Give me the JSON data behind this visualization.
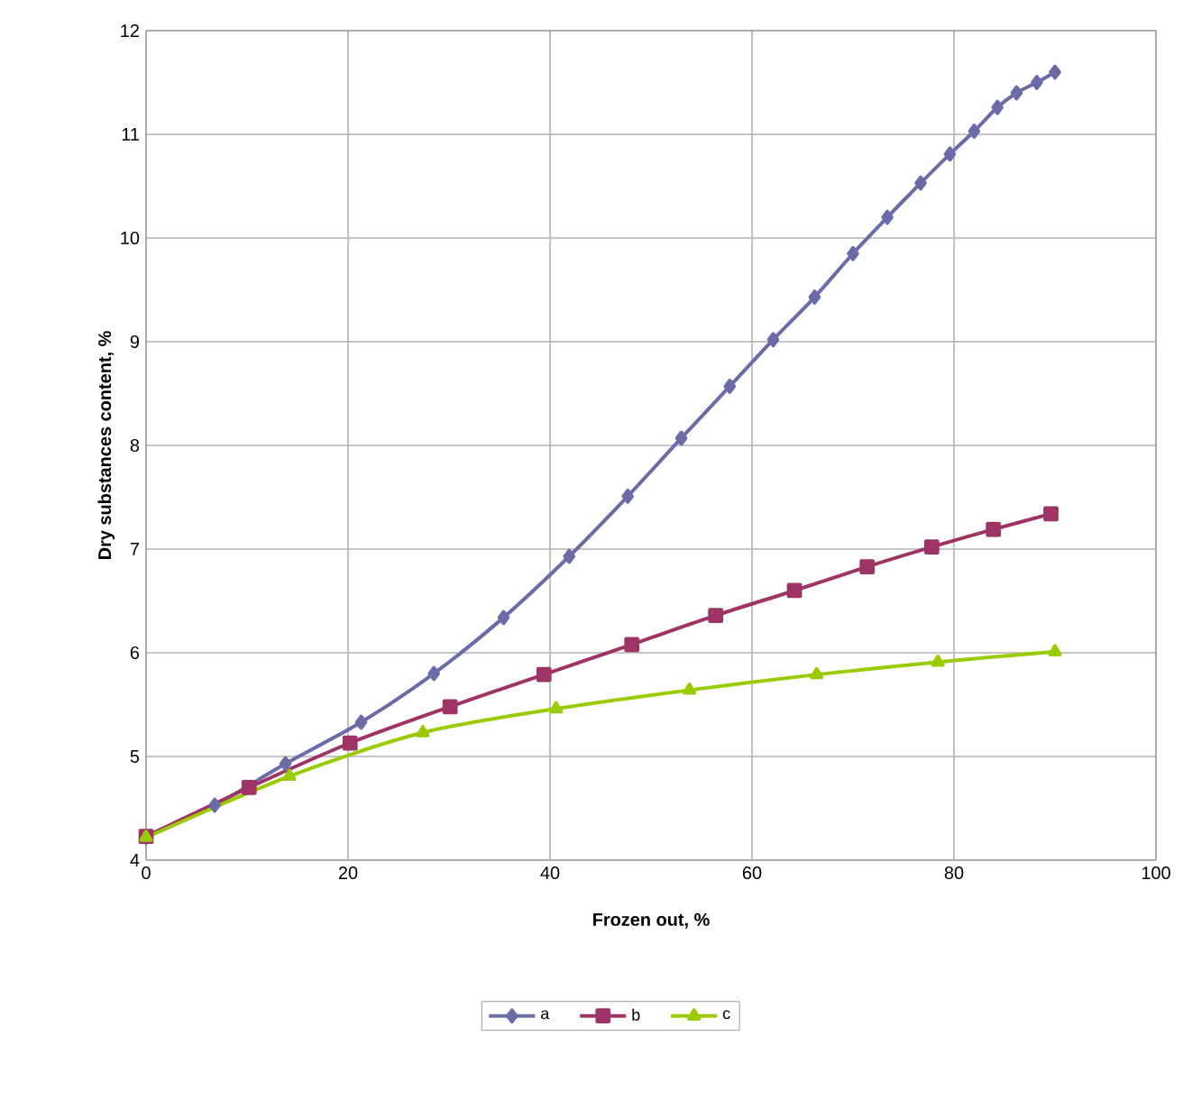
{
  "chart_data": {
    "type": "line",
    "xlabel": "Frozen out, %",
    "ylabel": "Dry substances content, %",
    "xlim": [
      0,
      100
    ],
    "ylim": [
      4,
      12
    ],
    "xticks": [
      0,
      20,
      40,
      60,
      80,
      100
    ],
    "yticks": [
      4,
      5,
      6,
      7,
      8,
      9,
      10,
      11,
      12
    ],
    "grid": true,
    "legend": "bottom",
    "series": [
      {
        "name": "a",
        "color": "#6b6ba8",
        "marker": "diamond",
        "x": [
          0,
          6.8,
          13.8,
          21.3,
          28.5,
          35.4,
          41.9,
          47.7,
          53,
          57.8,
          62.1,
          66.2,
          70,
          73.4,
          76.7,
          79.6,
          82,
          84.3,
          86.2,
          88.2,
          90
        ],
        "values": [
          4.22,
          4.53,
          4.93,
          5.33,
          5.8,
          6.34,
          6.93,
          7.51,
          8.07,
          8.57,
          9.02,
          9.43,
          9.85,
          10.2,
          10.53,
          10.81,
          11.03,
          11.26,
          11.4,
          11.5,
          11.6
        ]
      },
      {
        "name": "b",
        "color": "#9e3366",
        "marker": "square",
        "x": [
          0,
          10.2,
          20.2,
          30.1,
          39.4,
          48.1,
          56.4,
          64.2,
          71.4,
          77.8,
          83.9,
          89.6
        ],
        "values": [
          4.23,
          4.7,
          5.13,
          5.48,
          5.79,
          6.08,
          6.36,
          6.6,
          6.83,
          7.02,
          7.19,
          7.34
        ]
      },
      {
        "name": "c",
        "color": "#99cc00",
        "marker": "triangle",
        "x": [
          0,
          14.2,
          27.4,
          40.6,
          53.8,
          66.4,
          78.4,
          90
        ],
        "values": [
          4.22,
          4.81,
          5.23,
          5.46,
          5.64,
          5.79,
          5.91,
          6.01
        ]
      }
    ]
  }
}
